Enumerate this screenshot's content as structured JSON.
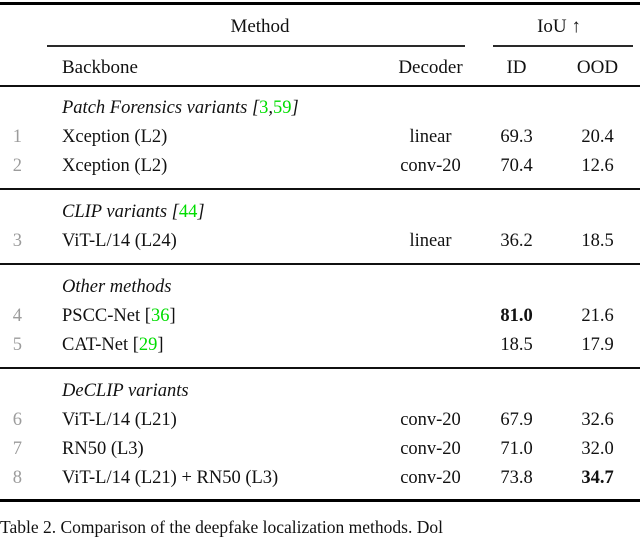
{
  "colors": {
    "citation_green": "#00dd00",
    "row_number_gray": "#9c9c9c",
    "text": "#111111",
    "rule": "#000000"
  },
  "header": {
    "method": "Method",
    "iou": "IoU ↑",
    "backbone": "Backbone",
    "decoder": "Decoder",
    "id": "ID",
    "ood": "OOD"
  },
  "punctuation": {
    "cite_open": "[",
    "cite_close": "]",
    "cite_sep": ",",
    "cite_space": " "
  },
  "table": {
    "sections": [
      {
        "title": "Patch Forensics variants",
        "citations": [
          "3",
          "59"
        ],
        "rows": [
          {
            "num": "1",
            "backbone": "Xception (L2)",
            "backbone_cite": null,
            "decoder": "linear",
            "id": "69.3",
            "ood": "20.4",
            "bold": null
          },
          {
            "num": "2",
            "backbone": "Xception (L2)",
            "backbone_cite": null,
            "decoder": "conv-20",
            "id": "70.4",
            "ood": "12.6",
            "bold": null
          }
        ]
      },
      {
        "title": "CLIP variants",
        "citations": [
          "44"
        ],
        "rows": [
          {
            "num": "3",
            "backbone": "ViT-L/14 (L24)",
            "backbone_cite": null,
            "decoder": "linear",
            "id": "36.2",
            "ood": "18.5",
            "bold": null
          }
        ]
      },
      {
        "title": "Other methods",
        "citations": [],
        "rows": [
          {
            "num": "4",
            "backbone": "PSCC-Net",
            "backbone_cite": "36",
            "decoder": "",
            "id": "81.0",
            "ood": "21.6",
            "bold": "id"
          },
          {
            "num": "5",
            "backbone": "CAT-Net",
            "backbone_cite": "29",
            "decoder": "",
            "id": "18.5",
            "ood": "17.9",
            "bold": null
          }
        ]
      },
      {
        "title": "DeCLIP variants",
        "citations": [],
        "rows": [
          {
            "num": "6",
            "backbone": "ViT-L/14 (L21)",
            "backbone_cite": null,
            "decoder": "conv-20",
            "id": "67.9",
            "ood": "32.6",
            "bold": null
          },
          {
            "num": "7",
            "backbone": "RN50 (L3)",
            "backbone_cite": null,
            "decoder": "conv-20",
            "id": "71.0",
            "ood": "32.0",
            "bold": null
          },
          {
            "num": "8",
            "backbone": "ViT-L/14 (L21) + RN50 (L3)",
            "backbone_cite": null,
            "decoder": "conv-20",
            "id": "73.8",
            "ood": "34.7",
            "bold": "ood"
          }
        ]
      }
    ]
  },
  "caption": "Table 2. Comparison of the deepfake localization methods. Dol"
}
